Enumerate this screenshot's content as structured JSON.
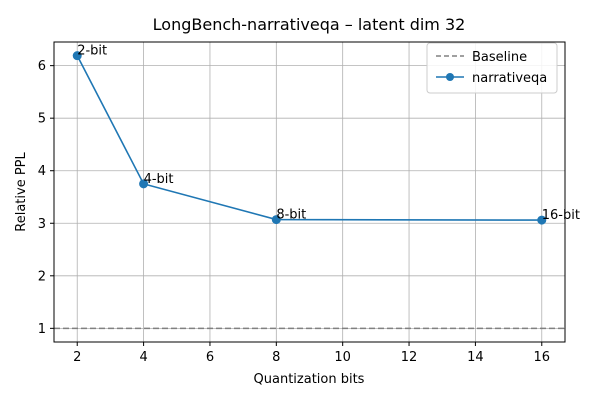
{
  "chart_data": {
    "type": "line",
    "title": "LongBench-narrativeqa – latent dim 32",
    "xlabel": "Quantization bits",
    "ylabel": "Relative PPL",
    "xlim": [
      1.3,
      16.7
    ],
    "ylim": [
      0.74,
      6.45
    ],
    "xticks": [
      2,
      4,
      6,
      8,
      10,
      12,
      14,
      16
    ],
    "yticks": [
      1,
      2,
      3,
      4,
      5,
      6
    ],
    "grid": true,
    "legend_position": "top-right",
    "baseline": {
      "name": "Baseline",
      "y": 1.0,
      "color": "#808080",
      "style": "dashed"
    },
    "series": [
      {
        "name": "narrativeqa",
        "color": "#1f77b4",
        "x": [
          2,
          4,
          8,
          16
        ],
        "y": [
          6.19,
          3.75,
          3.07,
          3.06
        ],
        "point_labels": [
          "2-bit",
          "4-bit",
          "8-bit",
          "16-bit"
        ]
      }
    ]
  }
}
